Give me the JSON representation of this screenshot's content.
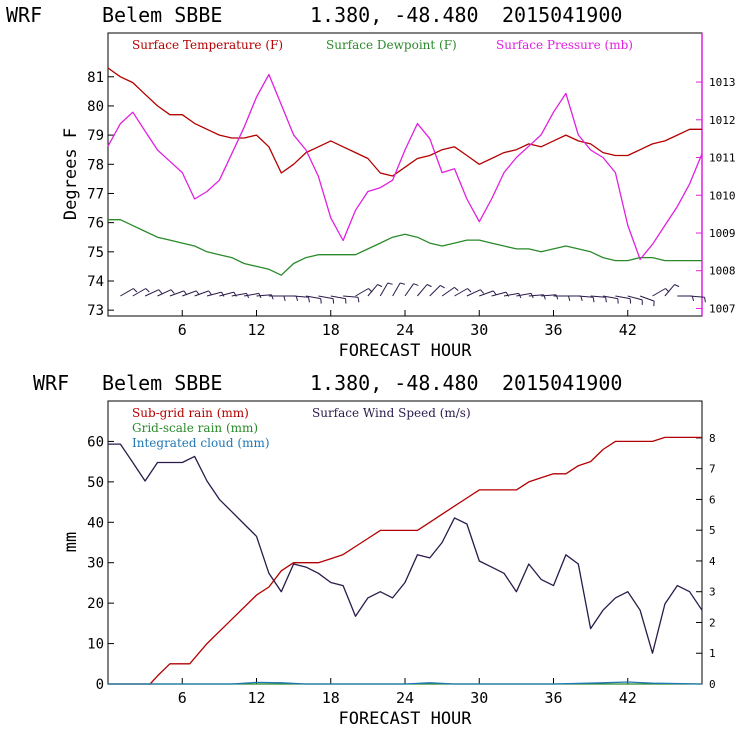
{
  "chart_data": [
    {
      "type": "line",
      "header": {
        "model": "WRF",
        "station": "Belem SBBE",
        "coords": "1.380, -48.480",
        "date": "2015041900"
      },
      "xlabel": "FORECAST HOUR",
      "ylabel_left": "Degrees F",
      "ylabel_right": "",
      "xlim": [
        0,
        48
      ],
      "xticks": [
        6,
        12,
        18,
        24,
        30,
        36,
        42
      ],
      "ylim_left": [
        72.8,
        82.5
      ],
      "yticks_left": [
        73,
        74,
        75,
        76,
        77,
        78,
        79,
        80,
        81
      ],
      "ylim_right": [
        1006.8,
        1014.3
      ],
      "yticks_right": [
        1007,
        1008,
        1009,
        1010,
        1011,
        1012,
        1013
      ],
      "legend": [
        "Surface Temperature (F)",
        "Surface Dewpoint (F)",
        "Surface Pressure (mb)"
      ],
      "colors": {
        "temp": "#b40000",
        "dew": "#2a8a2a",
        "pres": "#e020e0",
        "wind": "#2a1a4a"
      },
      "series": [
        {
          "name": "Surface Temperature (F)",
          "axis": "left",
          "x": [
            0,
            1,
            2,
            3,
            4,
            5,
            6,
            7,
            8,
            9,
            10,
            11,
            12,
            13,
            14,
            15,
            16,
            17,
            18,
            19,
            20,
            21,
            22,
            23,
            24,
            25,
            26,
            27,
            28,
            29,
            30,
            31,
            32,
            33,
            34,
            35,
            36,
            37,
            38,
            39,
            40,
            41,
            42,
            43,
            44,
            45,
            46,
            47,
            48
          ],
          "y": [
            81.3,
            81.0,
            80.8,
            80.4,
            80.0,
            79.7,
            79.7,
            79.4,
            79.2,
            79.0,
            78.9,
            78.9,
            79.0,
            78.6,
            77.7,
            78.0,
            78.4,
            78.6,
            78.8,
            78.6,
            78.4,
            78.2,
            77.7,
            77.6,
            77.9,
            78.2,
            78.3,
            78.5,
            78.6,
            78.3,
            78.0,
            78.2,
            78.4,
            78.5,
            78.7,
            78.6,
            78.8,
            79.0,
            78.8,
            78.7,
            78.4,
            78.3,
            78.3,
            78.5,
            78.7,
            78.8,
            79.0,
            79.2,
            79.2
          ]
        },
        {
          "name": "Surface Dewpoint (F)",
          "axis": "left",
          "x": [
            0,
            1,
            2,
            3,
            4,
            5,
            6,
            7,
            8,
            9,
            10,
            11,
            12,
            13,
            14,
            15,
            16,
            17,
            18,
            19,
            20,
            21,
            22,
            23,
            24,
            25,
            26,
            27,
            28,
            29,
            30,
            31,
            32,
            33,
            34,
            35,
            36,
            37,
            38,
            39,
            40,
            41,
            42,
            43,
            44,
            45,
            46,
            47,
            48
          ],
          "y": [
            76.1,
            76.1,
            75.9,
            75.7,
            75.5,
            75.4,
            75.3,
            75.2,
            75.0,
            74.9,
            74.8,
            74.6,
            74.5,
            74.4,
            74.2,
            74.6,
            74.8,
            74.9,
            74.9,
            74.9,
            74.9,
            75.1,
            75.3,
            75.5,
            75.6,
            75.5,
            75.3,
            75.2,
            75.3,
            75.4,
            75.4,
            75.3,
            75.2,
            75.1,
            75.1,
            75.0,
            75.1,
            75.2,
            75.1,
            75.0,
            74.8,
            74.7,
            74.7,
            74.8,
            74.8,
            74.7,
            74.7,
            74.7,
            74.7
          ]
        },
        {
          "name": "Surface Pressure (mb)",
          "axis": "right",
          "x": [
            0,
            1,
            2,
            3,
            4,
            5,
            6,
            7,
            8,
            9,
            10,
            11,
            12,
            13,
            14,
            15,
            16,
            17,
            18,
            19,
            20,
            21,
            22,
            23,
            24,
            25,
            26,
            27,
            28,
            29,
            30,
            31,
            32,
            33,
            34,
            35,
            36,
            37,
            38,
            39,
            40,
            41,
            42,
            43,
            44,
            45,
            46,
            47,
            48
          ],
          "y": [
            1011.3,
            1011.9,
            1012.2,
            1011.7,
            1011.2,
            1010.9,
            1010.6,
            1009.9,
            1010.1,
            1010.4,
            1011.1,
            1011.8,
            1012.6,
            1013.2,
            1012.4,
            1011.6,
            1011.2,
            1010.5,
            1009.4,
            1008.8,
            1009.6,
            1010.1,
            1010.2,
            1010.4,
            1011.2,
            1011.9,
            1011.5,
            1010.6,
            1010.7,
            1009.9,
            1009.3,
            1009.9,
            1010.6,
            1011.0,
            1011.3,
            1011.6,
            1012.2,
            1012.7,
            1011.6,
            1011.2,
            1011.0,
            1010.6,
            1009.2,
            1008.3,
            1008.7,
            1009.2,
            1009.7,
            1010.3,
            1011.1
          ]
        }
      ],
      "wind_barbs": [
        {
          "x": 1,
          "dir": 60
        },
        {
          "x": 2,
          "dir": 60
        },
        {
          "x": 3,
          "dir": 65
        },
        {
          "x": 4,
          "dir": 65
        },
        {
          "x": 5,
          "dir": 70
        },
        {
          "x": 6,
          "dir": 70
        },
        {
          "x": 7,
          "dir": 70
        },
        {
          "x": 8,
          "dir": 75
        },
        {
          "x": 9,
          "dir": 75
        },
        {
          "x": 10,
          "dir": 80
        },
        {
          "x": 11,
          "dir": 80
        },
        {
          "x": 12,
          "dir": 85
        },
        {
          "x": 13,
          "dir": 90
        },
        {
          "x": 14,
          "dir": 90
        },
        {
          "x": 15,
          "dir": 95
        },
        {
          "x": 16,
          "dir": 100
        },
        {
          "x": 17,
          "dir": 100
        },
        {
          "x": 18,
          "dir": 100
        },
        {
          "x": 19,
          "dir": 95
        },
        {
          "x": 20,
          "dir": 60
        },
        {
          "x": 21,
          "dir": 40
        },
        {
          "x": 22,
          "dir": 30
        },
        {
          "x": 23,
          "dir": 30
        },
        {
          "x": 24,
          "dir": 35
        },
        {
          "x": 25,
          "dir": 40
        },
        {
          "x": 26,
          "dir": 45
        },
        {
          "x": 27,
          "dir": 55
        },
        {
          "x": 28,
          "dir": 60
        },
        {
          "x": 29,
          "dir": 65
        },
        {
          "x": 30,
          "dir": 70
        },
        {
          "x": 31,
          "dir": 75
        },
        {
          "x": 32,
          "dir": 80
        },
        {
          "x": 33,
          "dir": 80
        },
        {
          "x": 34,
          "dir": 85
        },
        {
          "x": 35,
          "dir": 85
        },
        {
          "x": 36,
          "dir": 90
        },
        {
          "x": 37,
          "dir": 90
        },
        {
          "x": 38,
          "dir": 95
        },
        {
          "x": 39,
          "dir": 95
        },
        {
          "x": 40,
          "dir": 100
        },
        {
          "x": 41,
          "dir": 100
        },
        {
          "x": 42,
          "dir": 105
        },
        {
          "x": 43,
          "dir": 110
        },
        {
          "x": 44,
          "dir": 60
        },
        {
          "x": 45,
          "dir": 40
        },
        {
          "x": 46,
          "dir": 90
        },
        {
          "x": 47,
          "dir": 95
        }
      ]
    },
    {
      "type": "line",
      "header": {
        "model": "WRF",
        "station": "Belem SBBE",
        "coords": "1.380, -48.480",
        "date": "2015041900"
      },
      "xlabel": "FORECAST HOUR",
      "ylabel_left": "mm",
      "xlim": [
        0,
        48
      ],
      "xticks": [
        6,
        12,
        18,
        24,
        30,
        36,
        42
      ],
      "ylim_left": [
        0,
        70
      ],
      "yticks_left": [
        0,
        10,
        20,
        30,
        40,
        50,
        60
      ],
      "ylim_right": [
        0,
        9.2
      ],
      "yticks_right": [
        0,
        1,
        2,
        3,
        4,
        5,
        6,
        7,
        8
      ],
      "legend": [
        "Sub-grid rain (mm)",
        "Surface Wind Speed (m/s)",
        "Grid-scale rain (mm)",
        "Integrated cloud (mm)"
      ],
      "colors": {
        "subgrid": "#b40000",
        "wind": "#2a1a4a",
        "grid": "#2a8a2a",
        "cloud": "#1f77b4"
      },
      "series": [
        {
          "name": "Sub-grid rain (mm)",
          "axis": "left",
          "x": [
            0,
            3.4,
            4.0,
            5.0,
            6.0,
            6.6,
            8,
            10,
            12,
            13,
            14,
            15,
            16,
            17,
            18,
            19,
            20,
            21,
            22,
            23,
            24,
            25,
            26,
            27,
            28,
            29,
            30,
            31,
            32,
            33,
            34,
            35,
            36,
            37,
            38,
            39,
            40,
            41,
            42,
            43,
            44,
            45,
            46,
            47,
            48
          ],
          "y": [
            0,
            0,
            2,
            5,
            5,
            5,
            10,
            16,
            22,
            24,
            28,
            30,
            30,
            30,
            31,
            32,
            34,
            36,
            38,
            38,
            38,
            38,
            40,
            42,
            44,
            46,
            48,
            48,
            48,
            48,
            50,
            51,
            52,
            52,
            54,
            55,
            58,
            60,
            60,
            60,
            60,
            61,
            61,
            61,
            61
          ]
        },
        {
          "name": "Surface Wind Speed (m/s)",
          "axis": "right",
          "x": [
            0,
            1,
            2,
            3,
            4,
            5,
            6,
            7,
            8,
            9,
            10,
            11,
            12,
            13,
            14,
            15,
            16,
            17,
            18,
            19,
            20,
            21,
            22,
            23,
            24,
            25,
            26,
            27,
            28,
            29,
            30,
            31,
            32,
            33,
            34,
            35,
            36,
            37,
            38,
            39,
            40,
            41,
            42,
            43,
            44,
            45,
            46,
            47,
            48
          ],
          "y": [
            7.8,
            7.8,
            7.2,
            6.6,
            7.2,
            7.2,
            7.2,
            7.4,
            6.6,
            6.0,
            5.6,
            5.2,
            4.8,
            3.6,
            3.0,
            3.9,
            3.8,
            3.6,
            3.3,
            3.2,
            2.2,
            2.8,
            3.0,
            2.8,
            3.3,
            4.2,
            4.1,
            4.6,
            5.4,
            5.2,
            4.0,
            3.8,
            3.6,
            3.0,
            3.9,
            3.4,
            3.2,
            4.2,
            3.9,
            1.8,
            2.4,
            2.8,
            3.0,
            2.4,
            1.0,
            2.6,
            3.2,
            3.0,
            2.4
          ]
        },
        {
          "name": "Grid-scale rain (mm)",
          "axis": "left",
          "x": [
            0,
            48
          ],
          "y": [
            0,
            0
          ]
        },
        {
          "name": "Integrated cloud (mm)",
          "axis": "left",
          "x": [
            0,
            10,
            12,
            14,
            16,
            24,
            26,
            28,
            36,
            40,
            42,
            44,
            48
          ],
          "y": [
            0,
            0,
            0.4,
            0.3,
            0,
            0,
            0.3,
            0,
            0,
            0.3,
            0.5,
            0.2,
            0
          ]
        }
      ]
    }
  ]
}
